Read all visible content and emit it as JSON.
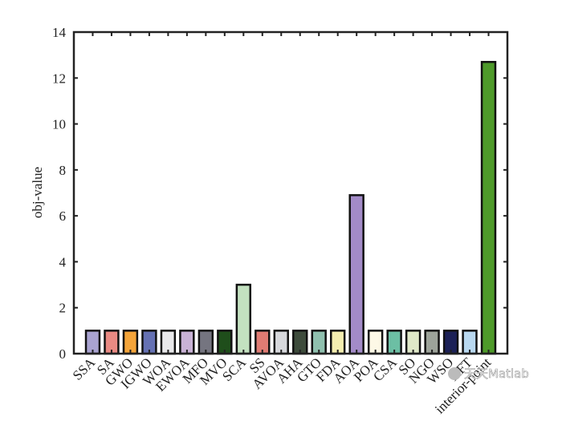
{
  "chart_data": {
    "type": "bar",
    "y_label": "obj-value",
    "categories": [
      "SSA",
      "SA",
      "GWO",
      "IGWO",
      "WOA",
      "EWOA",
      "MFO",
      "MVO",
      "SCA",
      "SS",
      "AVOA",
      "AHA",
      "GTO",
      "FDA",
      "AOA",
      "POA",
      "CSA",
      "SO",
      "NGO",
      "WSO",
      "AFT",
      "interior-point"
    ],
    "values": [
      1,
      1,
      1,
      1,
      1,
      1,
      1,
      1,
      3,
      1,
      1,
      1,
      1,
      1,
      6.9,
      1,
      1,
      1,
      1,
      1,
      1,
      12.7
    ],
    "colors": [
      "#a9a3d1",
      "#e98a83",
      "#f4a43a",
      "#6571b3",
      "#e8e8ea",
      "#c9b2d6",
      "#757580",
      "#1f4e1b",
      "#c3e1c0",
      "#e07b73",
      "#d7d8dc",
      "#3e4c3c",
      "#8fc0ae",
      "#f4eeb0",
      "#a38bc8",
      "#fdf8e6",
      "#6cbfa4",
      "#dfe8c8",
      "#9da39a",
      "#1c2157",
      "#b9d8f0",
      "#4e9a2a"
    ],
    "ylim": [
      0,
      14
    ],
    "yticks": [
      0,
      2,
      4,
      6,
      8,
      10,
      12,
      14
    ],
    "grid": false
  },
  "watermark": "天天Matlab"
}
